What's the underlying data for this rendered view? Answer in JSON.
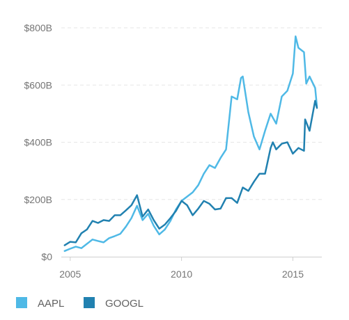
{
  "chart_data": {
    "type": "line",
    "title": "",
    "xlabel": "",
    "ylabel": "",
    "xlim": [
      2004.6,
      2016.3
    ],
    "ylim": [
      0,
      800
    ],
    "y_ticks": [
      0,
      200,
      400,
      600,
      800
    ],
    "y_tick_labels": [
      "$0",
      "$200B",
      "$400B",
      "$600B",
      "$800B"
    ],
    "x_ticks": [
      2005,
      2010,
      2015
    ],
    "x_tick_labels": [
      "2005",
      "2010",
      "2015"
    ],
    "grid": "horizontal dashed",
    "legend_position": "bottom-left",
    "series": [
      {
        "name": "AAPL",
        "color": "#4fb9e6",
        "x": [
          2004.75,
          2005.0,
          2005.25,
          2005.5,
          2005.75,
          2006.0,
          2006.25,
          2006.5,
          2006.75,
          2007.0,
          2007.25,
          2007.5,
          2007.75,
          2008.0,
          2008.25,
          2008.5,
          2008.75,
          2009.0,
          2009.25,
          2009.5,
          2009.75,
          2010.0,
          2010.25,
          2010.5,
          2010.75,
          2011.0,
          2011.25,
          2011.5,
          2011.75,
          2012.0,
          2012.25,
          2012.5,
          2012.67,
          2012.75,
          2013.0,
          2013.25,
          2013.5,
          2013.75,
          2014.0,
          2014.25,
          2014.5,
          2014.75,
          2015.0,
          2015.12,
          2015.25,
          2015.5,
          2015.6,
          2015.75,
          2016.0,
          2016.08
        ],
        "y": [
          20,
          28,
          35,
          30,
          45,
          60,
          55,
          50,
          65,
          72,
          80,
          105,
          135,
          178,
          128,
          150,
          108,
          78,
          95,
          125,
          165,
          195,
          210,
          225,
          250,
          290,
          320,
          310,
          345,
          375,
          560,
          550,
          625,
          630,
          505,
          420,
          375,
          440,
          500,
          465,
          560,
          580,
          640,
          770,
          730,
          715,
          605,
          630,
          590,
          525
        ]
      },
      {
        "name": "GOOGL",
        "color": "#2181b0",
        "x": [
          2004.75,
          2005.0,
          2005.25,
          2005.5,
          2005.75,
          2006.0,
          2006.25,
          2006.5,
          2006.75,
          2007.0,
          2007.25,
          2007.5,
          2007.75,
          2008.0,
          2008.25,
          2008.5,
          2008.75,
          2009.0,
          2009.25,
          2009.5,
          2009.75,
          2010.0,
          2010.25,
          2010.5,
          2010.75,
          2011.0,
          2011.25,
          2011.5,
          2011.75,
          2012.0,
          2012.25,
          2012.5,
          2012.75,
          2013.0,
          2013.25,
          2013.5,
          2013.75,
          2014.0,
          2014.1,
          2014.25,
          2014.5,
          2014.75,
          2015.0,
          2015.25,
          2015.5,
          2015.55,
          2015.75,
          2016.0,
          2016.08
        ],
        "y": [
          40,
          52,
          50,
          82,
          95,
          125,
          118,
          128,
          125,
          145,
          145,
          162,
          180,
          215,
          140,
          165,
          128,
          98,
          112,
          135,
          160,
          195,
          180,
          145,
          168,
          195,
          185,
          165,
          168,
          205,
          205,
          188,
          242,
          230,
          262,
          290,
          290,
          380,
          400,
          375,
          395,
          400,
          360,
          380,
          370,
          480,
          440,
          545,
          520
        ]
      }
    ]
  }
}
